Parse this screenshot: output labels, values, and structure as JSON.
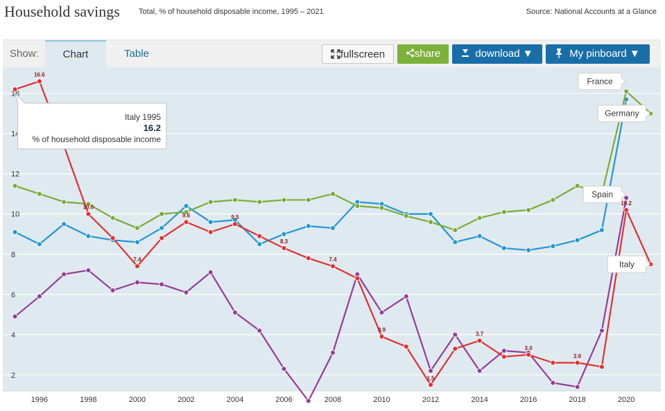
{
  "header": {
    "title": "Household savings",
    "subtitle": "Total, % of household disposable income, 1995 – 2021",
    "source": "Source: National Accounts at a Glance"
  },
  "toolbar": {
    "show_label": "Show:",
    "tabs": [
      "Chart",
      "Table"
    ],
    "fullscreen_label": "fullscreen",
    "share_label": "share",
    "download_label": "download ▼",
    "pinboard_label": "My pinboard ▼"
  },
  "tooltip": {
    "title": "Italy 1995",
    "value": "16.2",
    "unit": "% of household disposable income"
  },
  "colors": {
    "plot_bg": "#dfe9f0",
    "grid": "#ffffff",
    "axis_text": "#333333",
    "data_label": "#8b1a1a"
  },
  "chart_data": {
    "type": "line",
    "x": [
      1995,
      1996,
      1997,
      1998,
      1999,
      2000,
      2001,
      2002,
      2003,
      2004,
      2005,
      2006,
      2007,
      2008,
      2009,
      2010,
      2011,
      2012,
      2013,
      2014,
      2015,
      2016,
      2017,
      2018,
      2019,
      2020,
      2021
    ],
    "xlim": [
      1994.5,
      2021.3
    ],
    "ylim": [
      1.2,
      17.3
    ],
    "x_ticks": [
      1996,
      1998,
      2000,
      2002,
      2004,
      2006,
      2008,
      2010,
      2012,
      2014,
      2016,
      2018,
      2020
    ],
    "y_ticks": [
      2,
      4,
      6,
      8,
      10,
      12,
      14,
      16
    ],
    "grid": true,
    "series": [
      {
        "name": "Italy",
        "color": "#e03030",
        "values": [
          16.2,
          16.6,
          13.4,
          10.0,
          8.8,
          7.4,
          8.8,
          9.6,
          9.1,
          9.5,
          8.9,
          8.3,
          7.8,
          7.4,
          6.8,
          3.9,
          3.4,
          1.5,
          3.3,
          3.7,
          2.9,
          3.0,
          2.6,
          2.6,
          2.4,
          10.2,
          7.5
        ],
        "labels": {
          "1996": "16.6",
          "1998": "10.0",
          "2000": "7.4",
          "2002": "9.6",
          "2004": "9.5",
          "2006": "8.3",
          "2008": "7.4",
          "2010": "3.9",
          "2012": "1.5",
          "2014": "3.7",
          "2016": "3.0",
          "2018": "2.6",
          "2020": "10.2"
        }
      },
      {
        "name": "Germany",
        "color": "#7aab35",
        "values": [
          11.4,
          11.0,
          10.6,
          10.5,
          9.8,
          9.3,
          10.0,
          10.1,
          10.6,
          10.7,
          10.6,
          10.7,
          10.7,
          11.0,
          10.4,
          10.3,
          9.9,
          9.6,
          9.2,
          9.8,
          10.1,
          10.2,
          10.7,
          11.4,
          11.0,
          16.1,
          15.0
        ]
      },
      {
        "name": "France",
        "color": "#2196d3",
        "values": [
          9.1,
          8.5,
          9.5,
          8.9,
          8.7,
          8.6,
          9.3,
          10.4,
          9.6,
          9.7,
          8.5,
          9.0,
          9.4,
          9.3,
          10.6,
          10.5,
          10.0,
          10.0,
          8.6,
          8.9,
          8.3,
          8.2,
          8.4,
          8.7,
          9.2,
          15.7,
          null
        ]
      },
      {
        "name": "Spain",
        "color": "#953c96",
        "values": [
          4.9,
          5.9,
          7.0,
          7.2,
          6.2,
          6.6,
          6.5,
          6.1,
          7.1,
          5.1,
          4.2,
          2.3,
          0.7,
          3.1,
          7.0,
          5.1,
          5.9,
          2.2,
          4.0,
          2.2,
          3.2,
          3.1,
          1.6,
          1.4,
          4.2,
          10.8,
          null
        ]
      }
    ],
    "callouts": [
      {
        "name": "France",
        "year": 2020,
        "side": "left",
        "dy": -26
      },
      {
        "name": "Germany",
        "year": 2021,
        "side": "left",
        "dy": 0
      },
      {
        "name": "Spain",
        "year": 2020,
        "side": "left",
        "dy": -5
      },
      {
        "name": "Italy",
        "year": 2021,
        "side": "left",
        "dy": 0
      }
    ]
  }
}
